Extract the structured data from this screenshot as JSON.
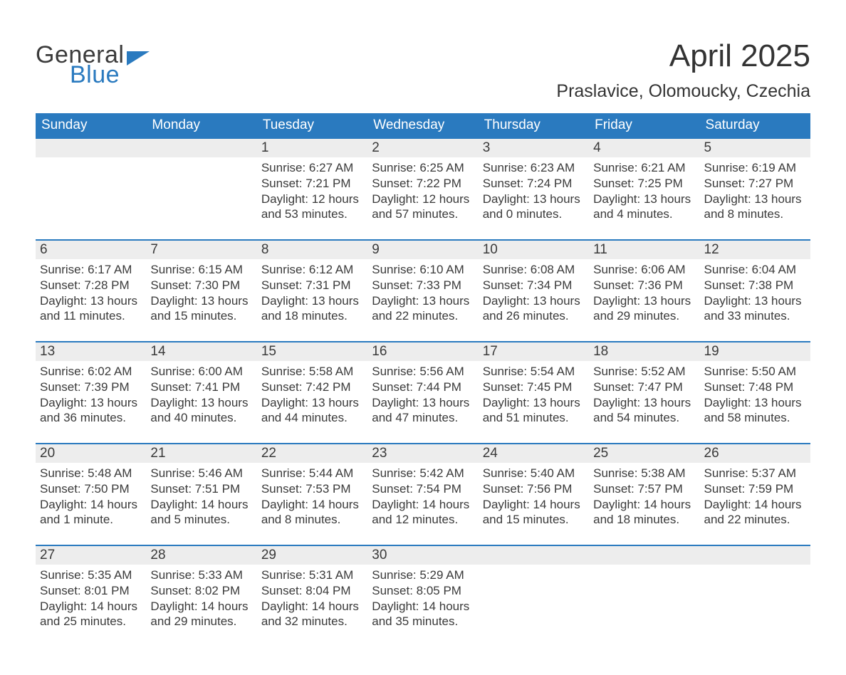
{
  "logo": {
    "word1": "General",
    "word2": "Blue"
  },
  "title": "April 2025",
  "subtitle": "Praslavice, Olomoucky, Czechia",
  "colors": {
    "header_bg": "#2a7abf",
    "header_text": "#ffffff",
    "daynum_bg": "#ededed",
    "row_border": "#2a7abf",
    "text": "#3a3a3a",
    "page_bg": "#ffffff",
    "logo_blue": "#2a7abf",
    "logo_gray": "#3b3b3b"
  },
  "columns": [
    "Sunday",
    "Monday",
    "Tuesday",
    "Wednesday",
    "Thursday",
    "Friday",
    "Saturday"
  ],
  "weeks": [
    [
      null,
      null,
      {
        "n": "1",
        "sr": "Sunrise: 6:27 AM",
        "ss": "Sunset: 7:21 PM",
        "d1": "Daylight: 12 hours",
        "d2": "and 53 minutes."
      },
      {
        "n": "2",
        "sr": "Sunrise: 6:25 AM",
        "ss": "Sunset: 7:22 PM",
        "d1": "Daylight: 12 hours",
        "d2": "and 57 minutes."
      },
      {
        "n": "3",
        "sr": "Sunrise: 6:23 AM",
        "ss": "Sunset: 7:24 PM",
        "d1": "Daylight: 13 hours",
        "d2": "and 0 minutes."
      },
      {
        "n": "4",
        "sr": "Sunrise: 6:21 AM",
        "ss": "Sunset: 7:25 PM",
        "d1": "Daylight: 13 hours",
        "d2": "and 4 minutes."
      },
      {
        "n": "5",
        "sr": "Sunrise: 6:19 AM",
        "ss": "Sunset: 7:27 PM",
        "d1": "Daylight: 13 hours",
        "d2": "and 8 minutes."
      }
    ],
    [
      {
        "n": "6",
        "sr": "Sunrise: 6:17 AM",
        "ss": "Sunset: 7:28 PM",
        "d1": "Daylight: 13 hours",
        "d2": "and 11 minutes."
      },
      {
        "n": "7",
        "sr": "Sunrise: 6:15 AM",
        "ss": "Sunset: 7:30 PM",
        "d1": "Daylight: 13 hours",
        "d2": "and 15 minutes."
      },
      {
        "n": "8",
        "sr": "Sunrise: 6:12 AM",
        "ss": "Sunset: 7:31 PM",
        "d1": "Daylight: 13 hours",
        "d2": "and 18 minutes."
      },
      {
        "n": "9",
        "sr": "Sunrise: 6:10 AM",
        "ss": "Sunset: 7:33 PM",
        "d1": "Daylight: 13 hours",
        "d2": "and 22 minutes."
      },
      {
        "n": "10",
        "sr": "Sunrise: 6:08 AM",
        "ss": "Sunset: 7:34 PM",
        "d1": "Daylight: 13 hours",
        "d2": "and 26 minutes."
      },
      {
        "n": "11",
        "sr": "Sunrise: 6:06 AM",
        "ss": "Sunset: 7:36 PM",
        "d1": "Daylight: 13 hours",
        "d2": "and 29 minutes."
      },
      {
        "n": "12",
        "sr": "Sunrise: 6:04 AM",
        "ss": "Sunset: 7:38 PM",
        "d1": "Daylight: 13 hours",
        "d2": "and 33 minutes."
      }
    ],
    [
      {
        "n": "13",
        "sr": "Sunrise: 6:02 AM",
        "ss": "Sunset: 7:39 PM",
        "d1": "Daylight: 13 hours",
        "d2": "and 36 minutes."
      },
      {
        "n": "14",
        "sr": "Sunrise: 6:00 AM",
        "ss": "Sunset: 7:41 PM",
        "d1": "Daylight: 13 hours",
        "d2": "and 40 minutes."
      },
      {
        "n": "15",
        "sr": "Sunrise: 5:58 AM",
        "ss": "Sunset: 7:42 PM",
        "d1": "Daylight: 13 hours",
        "d2": "and 44 minutes."
      },
      {
        "n": "16",
        "sr": "Sunrise: 5:56 AM",
        "ss": "Sunset: 7:44 PM",
        "d1": "Daylight: 13 hours",
        "d2": "and 47 minutes."
      },
      {
        "n": "17",
        "sr": "Sunrise: 5:54 AM",
        "ss": "Sunset: 7:45 PM",
        "d1": "Daylight: 13 hours",
        "d2": "and 51 minutes."
      },
      {
        "n": "18",
        "sr": "Sunrise: 5:52 AM",
        "ss": "Sunset: 7:47 PM",
        "d1": "Daylight: 13 hours",
        "d2": "and 54 minutes."
      },
      {
        "n": "19",
        "sr": "Sunrise: 5:50 AM",
        "ss": "Sunset: 7:48 PM",
        "d1": "Daylight: 13 hours",
        "d2": "and 58 minutes."
      }
    ],
    [
      {
        "n": "20",
        "sr": "Sunrise: 5:48 AM",
        "ss": "Sunset: 7:50 PM",
        "d1": "Daylight: 14 hours",
        "d2": "and 1 minute."
      },
      {
        "n": "21",
        "sr": "Sunrise: 5:46 AM",
        "ss": "Sunset: 7:51 PM",
        "d1": "Daylight: 14 hours",
        "d2": "and 5 minutes."
      },
      {
        "n": "22",
        "sr": "Sunrise: 5:44 AM",
        "ss": "Sunset: 7:53 PM",
        "d1": "Daylight: 14 hours",
        "d2": "and 8 minutes."
      },
      {
        "n": "23",
        "sr": "Sunrise: 5:42 AM",
        "ss": "Sunset: 7:54 PM",
        "d1": "Daylight: 14 hours",
        "d2": "and 12 minutes."
      },
      {
        "n": "24",
        "sr": "Sunrise: 5:40 AM",
        "ss": "Sunset: 7:56 PM",
        "d1": "Daylight: 14 hours",
        "d2": "and 15 minutes."
      },
      {
        "n": "25",
        "sr": "Sunrise: 5:38 AM",
        "ss": "Sunset: 7:57 PM",
        "d1": "Daylight: 14 hours",
        "d2": "and 18 minutes."
      },
      {
        "n": "26",
        "sr": "Sunrise: 5:37 AM",
        "ss": "Sunset: 7:59 PM",
        "d1": "Daylight: 14 hours",
        "d2": "and 22 minutes."
      }
    ],
    [
      {
        "n": "27",
        "sr": "Sunrise: 5:35 AM",
        "ss": "Sunset: 8:01 PM",
        "d1": "Daylight: 14 hours",
        "d2": "and 25 minutes."
      },
      {
        "n": "28",
        "sr": "Sunrise: 5:33 AM",
        "ss": "Sunset: 8:02 PM",
        "d1": "Daylight: 14 hours",
        "d2": "and 29 minutes."
      },
      {
        "n": "29",
        "sr": "Sunrise: 5:31 AM",
        "ss": "Sunset: 8:04 PM",
        "d1": "Daylight: 14 hours",
        "d2": "and 32 minutes."
      },
      {
        "n": "30",
        "sr": "Sunrise: 5:29 AM",
        "ss": "Sunset: 8:05 PM",
        "d1": "Daylight: 14 hours",
        "d2": "and 35 minutes."
      },
      null,
      null,
      null
    ]
  ]
}
